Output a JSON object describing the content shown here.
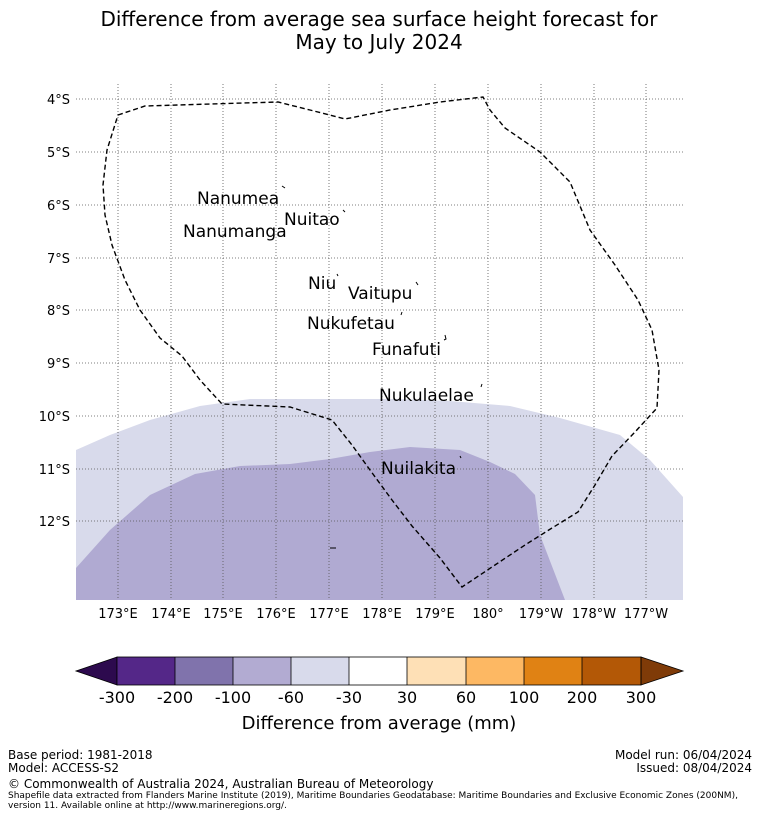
{
  "title": {
    "line1": "Difference from average sea surface height forecast for",
    "line2": "May to July 2024"
  },
  "map": {
    "lat_labels": [
      "4°S",
      "5°S",
      "6°S",
      "7°S",
      "8°S",
      "9°S",
      "10°S",
      "11°S",
      "12°S"
    ],
    "lon_labels": [
      "173°E",
      "174°E",
      "175°E",
      "176°E",
      "177°E",
      "178°E",
      "179°E",
      "180°",
      "179°W",
      "178°W",
      "177°W"
    ],
    "islands": [
      {
        "name": "Nanumea"
      },
      {
        "name": "Nuitao"
      },
      {
        "name": "Nanumanga"
      },
      {
        "name": "Niu"
      },
      {
        "name": "Vaitupu"
      },
      {
        "name": "Nukufetau"
      },
      {
        "name": "Funafuti"
      },
      {
        "name": "Nukulaelae"
      },
      {
        "name": "Nuilakita"
      }
    ]
  },
  "colorbar": {
    "ticks": [
      "-300",
      "-200",
      "-100",
      "-60",
      "-30",
      "30",
      "60",
      "100",
      "200",
      "300"
    ],
    "label": "Difference from average (mm)",
    "colors": {
      "min_extend": "#2d0a4e",
      "band_1": "#542788",
      "band_2": "#8073ac",
      "band_3": "#b2abd2",
      "band_4": "#d8daeb",
      "band_5": "#ffffff",
      "band_6": "#fee0b6",
      "band_7": "#fdb863",
      "band_8": "#e08214",
      "band_9": "#b35806",
      "max_extend": "#7f3b08"
    }
  },
  "footer": {
    "base_period": "Base period: 1981-2018",
    "model": "Model: ACCESS-S2",
    "model_run": "Model run: 06/04/2024",
    "issued": "Issued: 08/04/2024",
    "copyright": "© Commonwealth of Australia 2024, Australian Bureau of Meteorology",
    "shapefile_line1": "Shapefile data extracted from Flanders Marine Institute (2019), Maritime Boundaries Geodatabase: Maritime Boundaries and Exclusive Economic Zones (200NM),",
    "shapefile_line2": "version 11. Available online at http://www.marineregions.org/."
  }
}
